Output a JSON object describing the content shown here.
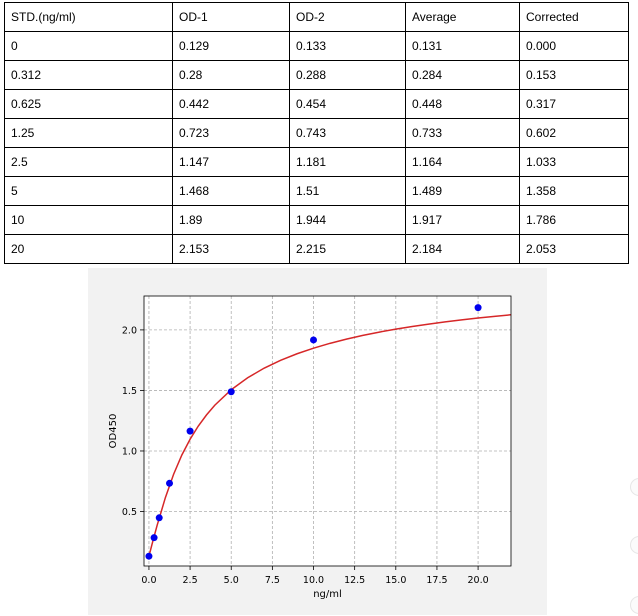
{
  "table": {
    "headers": [
      "STD.(ng/ml)",
      "OD-1",
      "OD-2",
      "Average",
      "Corrected"
    ],
    "rows": [
      [
        "0",
        "0.129",
        "0.133",
        "0.131",
        "0.000"
      ],
      [
        "0.312",
        "0.28",
        "0.288",
        "0.284",
        "0.153"
      ],
      [
        "0.625",
        "0.442",
        "0.454",
        "0.448",
        "0.317"
      ],
      [
        "1.25",
        "0.723",
        "0.743",
        "0.733",
        "0.602"
      ],
      [
        "2.5",
        "1.147",
        "1.181",
        "1.164",
        "1.033"
      ],
      [
        "5",
        "1.468",
        "1.51",
        "1.489",
        "1.358"
      ],
      [
        "10",
        "1.89",
        "1.944",
        "1.917",
        "1.786"
      ],
      [
        "20",
        "2.153",
        "2.215",
        "2.184",
        "2.053"
      ]
    ]
  },
  "chart_data": {
    "type": "scatter",
    "xlabel": "ng/ml",
    "ylabel": "OD450",
    "xlim": [
      -0.3,
      22.0
    ],
    "ylim": [
      0.05,
      2.28
    ],
    "xticks": [
      0.0,
      2.5,
      5.0,
      7.5,
      10.0,
      12.5,
      15.0,
      17.5,
      20.0
    ],
    "xtick_labels": [
      "0.0",
      "2.5",
      "5.0",
      "7.5",
      "10.0",
      "12.5",
      "15.0",
      "17.5",
      "20.0"
    ],
    "yticks": [
      0.5,
      1.0,
      1.5,
      2.0
    ],
    "ytick_labels": [
      "0.5",
      "1.0",
      "1.5",
      "2.0"
    ],
    "grid": true,
    "points": {
      "x": [
        0,
        0.312,
        0.625,
        1.25,
        2.5,
        5,
        10,
        20
      ],
      "y": [
        0.131,
        0.284,
        0.448,
        0.733,
        1.164,
        1.489,
        1.917,
        2.184
      ],
      "color": "#0000ee"
    },
    "fit_curve": {
      "x": [
        0,
        0.25,
        0.5,
        1,
        1.5,
        2,
        2.5,
        3,
        3.5,
        4,
        5,
        6,
        7,
        8,
        9,
        10,
        11,
        12,
        13,
        14,
        15,
        16,
        17,
        18,
        19,
        20,
        21,
        22
      ],
      "y": [
        0.131,
        0.262,
        0.387,
        0.615,
        0.808,
        0.967,
        1.097,
        1.206,
        1.298,
        1.378,
        1.506,
        1.605,
        1.684,
        1.749,
        1.803,
        1.849,
        1.889,
        1.924,
        1.955,
        1.982,
        2.006,
        2.028,
        2.048,
        2.066,
        2.083,
        2.098,
        2.112,
        2.125
      ],
      "color": "#d62728"
    }
  }
}
